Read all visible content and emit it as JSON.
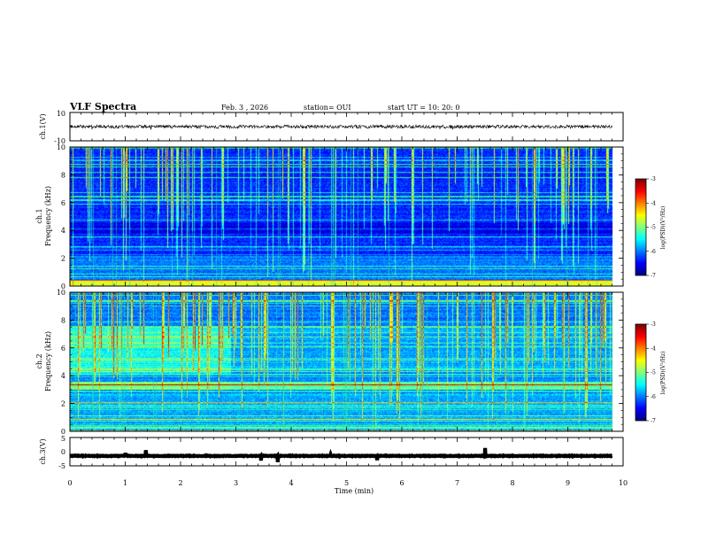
{
  "header": {
    "title": "VLF Spectra",
    "date": "Feb. 3  , 2026",
    "station": "station= OUI",
    "start": "start  UT  =   10: 20: 0"
  },
  "chart_data": [
    {
      "type": "line",
      "name": "ch1-waveform",
      "ylabel": "ch.1(V)",
      "ylim": [
        -10,
        10
      ],
      "ytick_labels": [
        "10",
        "-10"
      ],
      "baseline": 0,
      "noise_amplitude": 1.2
    },
    {
      "type": "heatmap",
      "name": "ch1-spectrogram",
      "ylabel_line1": "ch.1",
      "ylabel_line2": "Frequency  (kHz)",
      "ylim": [
        0,
        10
      ],
      "ytick_labels": [
        "0",
        "2",
        "4",
        "6",
        "8",
        "10"
      ],
      "xlim": [
        0,
        10
      ],
      "data_end_min": 9.8,
      "colorbar": {
        "label": "log(PSD)(V²/Hz)",
        "range": [
          -7,
          -3
        ],
        "tick_labels": [
          "-3",
          "-4",
          "-5",
          "-6",
          "-7"
        ]
      }
    },
    {
      "type": "heatmap",
      "name": "ch2-spectrogram",
      "ylabel_line1": "ch.2",
      "ylabel_line2": "Frequency  (kHz)",
      "ylim": [
        0,
        10
      ],
      "ytick_labels": [
        "0",
        "2",
        "4",
        "6",
        "8",
        "10"
      ],
      "xlim": [
        0,
        10
      ],
      "data_end_min": 9.8,
      "band_kHz": [
        3.0,
        3.6
      ],
      "colorbar": {
        "label": "log(PSD)(V²/Hz)",
        "range": [
          -7,
          -3
        ],
        "tick_labels": [
          "-3",
          "-4",
          "-5",
          "-6",
          "-7"
        ]
      }
    },
    {
      "type": "line",
      "name": "ch3-waveform",
      "ylabel": "ch.3(V)",
      "ylim": [
        -5,
        5
      ],
      "ytick_labels": [
        "5",
        "0",
        "-5"
      ],
      "baseline": -1.5,
      "noise_amplitude": 0.1
    }
  ],
  "xaxis": {
    "label": "Time  (min)",
    "tick_labels": [
      "0",
      "1",
      "2",
      "3",
      "4",
      "5",
      "6",
      "7",
      "8",
      "9",
      "10"
    ],
    "range": [
      0,
      10
    ]
  },
  "colors": {
    "trace": "#000000",
    "axis": "#000000"
  }
}
